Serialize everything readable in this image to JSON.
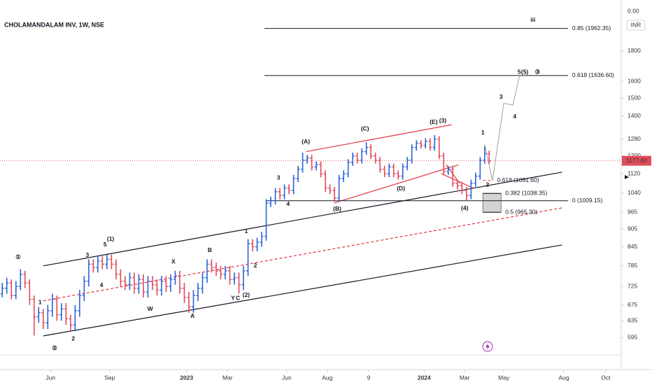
{
  "chart_data": {
    "type": "ohlc",
    "title": "CHOLAMANDALAM INV, 1W, NSE",
    "currency": "INR",
    "top_label": "0.00",
    "last_price_label": "1177.60",
    "up_color": "#2b63d9",
    "down_color": "#e04b5a",
    "log": true,
    "grid": false,
    "xlim": [
      -0.5,
      136
    ],
    "xticks": [
      {
        "value": 10.6,
        "label": "Jun"
      },
      {
        "value": 23.6,
        "label": "Sep"
      },
      {
        "value": 40.5,
        "label": "2023"
      },
      {
        "value": 49.5,
        "label": "Mar"
      },
      {
        "value": 62.5,
        "label": "Jun"
      },
      {
        "value": 71.4,
        "label": "Aug"
      },
      {
        "value": 80.5,
        "label": "9"
      },
      {
        "value": 92.7,
        "label": "2024"
      },
      {
        "value": 101.6,
        "label": "Mar"
      },
      {
        "value": 110.2,
        "label": "May"
      },
      {
        "value": 123.4,
        "label": "Aug"
      },
      {
        "value": 132.6,
        "label": "Oct"
      }
    ],
    "ylim": [
      526,
      2190
    ],
    "yticks": [
      595,
      635,
      675,
      725,
      785,
      845,
      905,
      965,
      1040,
      1120,
      1200,
      1280,
      1400,
      1500,
      1600,
      1800
    ],
    "ohlc": [
      [
        705,
        735,
        695,
        720
      ],
      [
        720,
        750,
        705,
        735
      ],
      [
        735,
        745,
        690,
        700
      ],
      [
        700,
        740,
        690,
        725
      ],
      [
        725,
        775,
        715,
        760
      ],
      [
        760,
        770,
        720,
        735
      ],
      [
        735,
        745,
        675,
        690
      ],
      [
        690,
        700,
        600,
        645
      ],
      [
        645,
        670,
        630,
        655
      ],
      [
        655,
        665,
        615,
        630
      ],
      [
        630,
        675,
        615,
        660
      ],
      [
        660,
        705,
        645,
        690
      ],
      [
        690,
        700,
        635,
        650
      ],
      [
        650,
        680,
        635,
        665
      ],
      [
        665,
        680,
        625,
        640
      ],
      [
        640,
        650,
        610,
        625
      ],
      [
        625,
        675,
        610,
        660
      ],
      [
        660,
        715,
        645,
        700
      ],
      [
        700,
        755,
        685,
        740
      ],
      [
        740,
        805,
        725,
        790
      ],
      [
        790,
        805,
        765,
        780
      ],
      [
        780,
        815,
        765,
        800
      ],
      [
        800,
        815,
        775,
        790
      ],
      [
        790,
        820,
        775,
        805
      ],
      [
        805,
        820,
        775,
        790
      ],
      [
        790,
        805,
        745,
        760
      ],
      [
        760,
        775,
        725,
        740
      ],
      [
        740,
        755,
        715,
        730
      ],
      [
        730,
        765,
        715,
        750
      ],
      [
        750,
        765,
        705,
        720
      ],
      [
        720,
        760,
        705,
        745
      ],
      [
        745,
        760,
        695,
        710
      ],
      [
        710,
        755,
        695,
        740
      ],
      [
        740,
        755,
        715,
        730
      ],
      [
        730,
        745,
        700,
        715
      ],
      [
        715,
        755,
        700,
        740
      ],
      [
        740,
        755,
        710,
        725
      ],
      [
        725,
        760,
        710,
        745
      ],
      [
        745,
        770,
        730,
        755
      ],
      [
        755,
        770,
        705,
        720
      ],
      [
        720,
        735,
        680,
        695
      ],
      [
        695,
        710,
        655,
        670
      ],
      [
        670,
        715,
        655,
        700
      ],
      [
        700,
        735,
        685,
        720
      ],
      [
        720,
        765,
        705,
        750
      ],
      [
        750,
        805,
        735,
        790
      ],
      [
        790,
        805,
        765,
        780
      ],
      [
        780,
        795,
        755,
        770
      ],
      [
        770,
        785,
        745,
        760
      ],
      [
        760,
        785,
        745,
        770
      ],
      [
        770,
        785,
        730,
        745
      ],
      [
        745,
        765,
        730,
        750
      ],
      [
        750,
        765,
        705,
        730
      ],
      [
        730,
        785,
        715,
        770
      ],
      [
        770,
        870,
        755,
        855
      ],
      [
        855,
        870,
        830,
        845
      ],
      [
        845,
        875,
        830,
        860
      ],
      [
        860,
        895,
        845,
        880
      ],
      [
        880,
        1015,
        865,
        1000
      ],
      [
        1000,
        1025,
        985,
        1010
      ],
      [
        1010,
        1060,
        995,
        1045
      ],
      [
        1045,
        1060,
        1015,
        1030
      ],
      [
        1030,
        1075,
        1015,
        1060
      ],
      [
        1060,
        1075,
        1035,
        1050
      ],
      [
        1050,
        1115,
        1035,
        1100
      ],
      [
        1100,
        1155,
        1085,
        1140
      ],
      [
        1140,
        1215,
        1125,
        1180
      ],
      [
        1180,
        1205,
        1165,
        1190
      ],
      [
        1190,
        1205,
        1135,
        1150
      ],
      [
        1150,
        1175,
        1135,
        1160
      ],
      [
        1160,
        1175,
        1105,
        1120
      ],
      [
        1120,
        1135,
        1045,
        1060
      ],
      [
        1060,
        1075,
        1035,
        1050
      ],
      [
        1050,
        1065,
        1005,
        1020
      ],
      [
        1020,
        1115,
        1005,
        1100
      ],
      [
        1100,
        1135,
        1085,
        1120
      ],
      [
        1120,
        1185,
        1105,
        1170
      ],
      [
        1170,
        1215,
        1155,
        1200
      ],
      [
        1200,
        1215,
        1165,
        1180
      ],
      [
        1180,
        1235,
        1165,
        1220
      ],
      [
        1220,
        1265,
        1205,
        1240
      ],
      [
        1240,
        1255,
        1185,
        1200
      ],
      [
        1200,
        1215,
        1165,
        1180
      ],
      [
        1180,
        1195,
        1125,
        1140
      ],
      [
        1140,
        1155,
        1105,
        1120
      ],
      [
        1120,
        1165,
        1105,
        1150
      ],
      [
        1150,
        1165,
        1105,
        1120
      ],
      [
        1120,
        1135,
        1095,
        1110
      ],
      [
        1110,
        1165,
        1095,
        1150
      ],
      [
        1150,
        1195,
        1135,
        1180
      ],
      [
        1180,
        1255,
        1165,
        1240
      ],
      [
        1240,
        1275,
        1225,
        1260
      ],
      [
        1260,
        1275,
        1235,
        1250
      ],
      [
        1250,
        1285,
        1235,
        1270
      ],
      [
        1270,
        1285,
        1225,
        1240
      ],
      [
        1240,
        1300,
        1225,
        1280
      ],
      [
        1280,
        1295,
        1185,
        1200
      ],
      [
        1200,
        1215,
        1115,
        1130
      ],
      [
        1130,
        1155,
        1115,
        1140
      ],
      [
        1140,
        1155,
        1065,
        1080
      ],
      [
        1080,
        1095,
        1055,
        1070
      ],
      [
        1070,
        1085,
        1035,
        1050
      ],
      [
        1050,
        1065,
        1010,
        1030
      ],
      [
        1030,
        1095,
        1015,
        1080
      ],
      [
        1080,
        1125,
        1065,
        1110
      ],
      [
        1110,
        1195,
        1095,
        1180
      ],
      [
        1180,
        1245,
        1165,
        1210
      ],
      [
        1210,
        1225,
        1165,
        1177.6
      ]
    ],
    "lines": [
      {
        "points": [
          [
            9,
            785
          ],
          [
            123,
            1127
          ]
        ],
        "color": "#131722",
        "dash": false
      },
      {
        "points": [
          [
            9,
            599
          ],
          [
            123,
            851
          ]
        ],
        "color": "#131722",
        "dash": false
      },
      {
        "points": [
          [
            9,
            686
          ],
          [
            123,
            982
          ]
        ],
        "color": "#e0323f",
        "dash": true
      },
      {
        "points": [
          [
            66.8,
            1220
          ],
          [
            98.7,
            1353
          ]
        ],
        "color": "#e0323f",
        "dash": false
      },
      {
        "points": [
          [
            73,
            1001
          ],
          [
            100.2,
            1159
          ]
        ],
        "color": "#e0323f",
        "dash": false
      },
      {
        "points": [
          [
            96.5,
            1120
          ],
          [
            103.5,
            1060
          ]
        ],
        "color": "#e0323f",
        "dash": false
      },
      {
        "points": [
          [
            97.5,
            1160
          ],
          [
            100.5,
            1080
          ]
        ],
        "color": "#e0323f",
        "dash": false
      }
    ],
    "levels": [
      {
        "price": 1962.35,
        "from": 57.6,
        "to": 124.3,
        "label": "0.85 (1962.35)",
        "color": "#131722",
        "dash": false,
        "zone": false
      },
      {
        "price": 1636.6,
        "from": 57.6,
        "to": 124.3,
        "label": "0.618 (1636.60)",
        "color": "#131722",
        "dash": false,
        "zone": false
      },
      {
        "price": 1009.15,
        "from": 57.9,
        "to": 124.3,
        "label": "0 (1009.15)",
        "color": "#131722",
        "dash": false,
        "zone": false
      },
      {
        "price": 1091.6,
        "from": 105.6,
        "to": 107.8,
        "label": "0.618 (1091.60)",
        "color": "#e0323f",
        "dash": true,
        "zone": false
      },
      {
        "price": 1038.35,
        "from": 105.6,
        "to": 109.6,
        "label": "0.382 (1038.35)",
        "color": "#131722",
        "dash": false,
        "zone": true
      },
      {
        "price": 965.3,
        "from": 105.6,
        "to": 109.6,
        "label": "0.5 (965.30)",
        "color": "#131722",
        "dash": false,
        "zone": true
      }
    ],
    "projection": {
      "points": [
        [
          106,
          1255
        ],
        [
          107.7,
          1090
        ],
        [
          110.2,
          1470
        ],
        [
          112.2,
          1460
        ],
        [
          113.7,
          1640
        ]
      ],
      "color": "#9aa0a6"
    },
    "labels": [
      {
        "text": "①",
        "x": 3.5,
        "y": 811,
        "color": "#e0323f"
      },
      {
        "text": "②",
        "x": 11.5,
        "y": 571,
        "color": "#e0323f"
      },
      {
        "text": "1",
        "x": 8.3,
        "y": 681,
        "color": "#e0323f"
      },
      {
        "text": "2",
        "x": 15.6,
        "y": 592,
        "color": "#e0323f"
      },
      {
        "text": "3",
        "x": 18.7,
        "y": 818,
        "color": "#e0323f"
      },
      {
        "text": "4",
        "x": 21.8,
        "y": 728,
        "color": "#e0323f"
      },
      {
        "text": "5",
        "x": 22.6,
        "y": 851,
        "color": "#e0323f"
      },
      {
        "text": "(1)",
        "x": 23.8,
        "y": 870,
        "color": "#e0323f"
      },
      {
        "text": "X",
        "x": 37.6,
        "y": 797,
        "color": "#e0323f"
      },
      {
        "text": "W",
        "x": 32.5,
        "y": 664,
        "color": "#e0323f"
      },
      {
        "text": "Y",
        "x": 50.7,
        "y": 692,
        "color": "#e0323f"
      },
      {
        "text": "C",
        "x": 51.8,
        "y": 692,
        "color": "#131722"
      },
      {
        "text": "(2)",
        "x": 53.6,
        "y": 701,
        "color": "#e0323f"
      },
      {
        "text": "B",
        "x": 45.6,
        "y": 833,
        "color": "#131722"
      },
      {
        "text": "A",
        "x": 41.8,
        "y": 646,
        "color": "#131722"
      },
      {
        "text": "2",
        "x": 55.6,
        "y": 785,
        "color": "#e0323f"
      },
      {
        "text": "1",
        "x": 53.6,
        "y": 896,
        "color": "#131722"
      },
      {
        "text": "3",
        "x": 60.7,
        "y": 1102,
        "color": "#131722"
      },
      {
        "text": "4",
        "x": 62.8,
        "y": 996,
        "color": "#131722"
      },
      {
        "text": "(A)",
        "x": 66.7,
        "y": 1266,
        "color": "#131722"
      },
      {
        "text": "(B)",
        "x": 73.6,
        "y": 977,
        "color": "#131722"
      },
      {
        "text": "(C)",
        "x": 79.7,
        "y": 1332,
        "color": "#131722"
      },
      {
        "text": "(D)",
        "x": 87.6,
        "y": 1057,
        "color": "#131722"
      },
      {
        "text": "(E)",
        "x": 94.8,
        "y": 1366,
        "color": "#131722"
      },
      {
        "text": "(3)",
        "x": 96.8,
        "y": 1373,
        "color": "#e0323f"
      },
      {
        "text": "(4)",
        "x": 101.6,
        "y": 980,
        "color": "#e0323f"
      },
      {
        "text": "1",
        "x": 105.6,
        "y": 1311,
        "color": "#131722"
      },
      {
        "text": "2",
        "x": 106.6,
        "y": 1072,
        "color": "#131722"
      },
      {
        "text": "3",
        "x": 109.6,
        "y": 1505,
        "color": "#131722"
      },
      {
        "text": "4",
        "x": 112.6,
        "y": 1395,
        "color": "#131722"
      },
      {
        "text": "5",
        "x": 113.6,
        "y": 1658,
        "color": "#131722"
      },
      {
        "text": "(5)",
        "x": 114.8,
        "y": 1658,
        "color": "#e0323f"
      },
      {
        "text": "③",
        "x": 117.6,
        "y": 1658,
        "color": "#e0323f"
      },
      {
        "text": "iii",
        "x": 116.6,
        "y": 2026,
        "color": "#e0323f"
      }
    ]
  }
}
